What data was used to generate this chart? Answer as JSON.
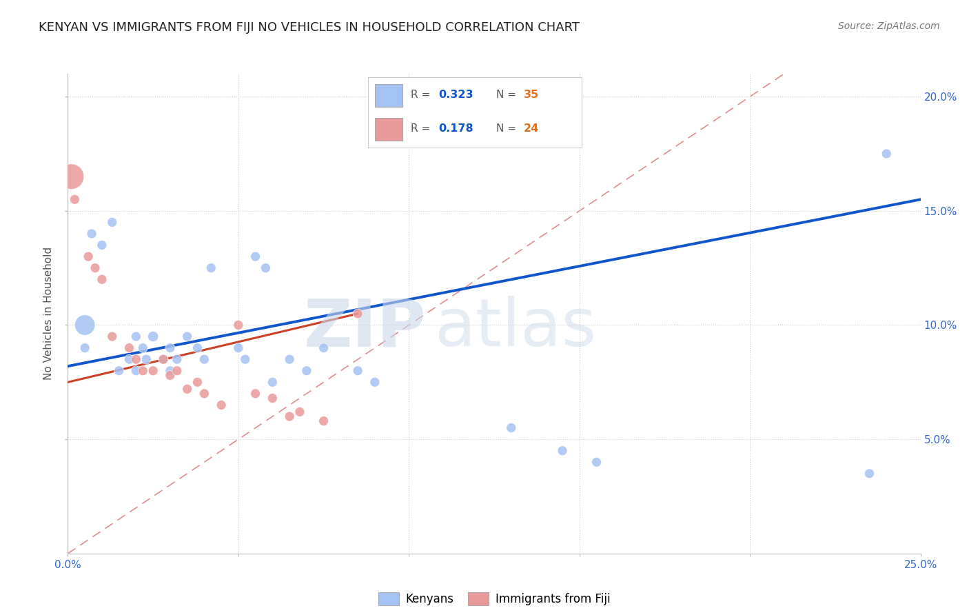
{
  "title": "KENYAN VS IMMIGRANTS FROM FIJI NO VEHICLES IN HOUSEHOLD CORRELATION CHART",
  "source": "Source: ZipAtlas.com",
  "ylabel_label": "No Vehicles in Household",
  "xlim": [
    0.0,
    0.25
  ],
  "ylim": [
    0.0,
    0.21
  ],
  "xticks": [
    0.0,
    0.05,
    0.1,
    0.15,
    0.2,
    0.25
  ],
  "yticks": [
    0.05,
    0.1,
    0.15,
    0.2
  ],
  "xticklabels": [
    "0.0%",
    "",
    "",
    "",
    "",
    "25.0%"
  ],
  "yticklabels": [
    "5.0%",
    "10.0%",
    "15.0%",
    "20.0%"
  ],
  "blue_color": "#a4c2f4",
  "pink_color": "#ea9999",
  "blue_line_color": "#1155cc",
  "pink_line_color": "#cc4125",
  "diagonal_color": "#cc4125",
  "watermark_zip": "ZIP",
  "watermark_atlas": "atlas",
  "blue_line_x": [
    0.0,
    0.25
  ],
  "blue_line_y": [
    0.082,
    0.155
  ],
  "pink_line_x": [
    0.0,
    0.085
  ],
  "pink_line_y": [
    0.075,
    0.105
  ],
  "kenyans_x": [
    0.005,
    0.005,
    0.007,
    0.01,
    0.013,
    0.015,
    0.018,
    0.02,
    0.02,
    0.022,
    0.023,
    0.025,
    0.028,
    0.03,
    0.03,
    0.032,
    0.035,
    0.038,
    0.04,
    0.042,
    0.05,
    0.052,
    0.055,
    0.058,
    0.06,
    0.065,
    0.07,
    0.075,
    0.085,
    0.09,
    0.13,
    0.145,
    0.155,
    0.235,
    0.24
  ],
  "kenyans_y": [
    0.09,
    0.1,
    0.14,
    0.135,
    0.145,
    0.08,
    0.085,
    0.08,
    0.095,
    0.09,
    0.085,
    0.095,
    0.085,
    0.09,
    0.08,
    0.085,
    0.095,
    0.09,
    0.085,
    0.125,
    0.09,
    0.085,
    0.13,
    0.125,
    0.075,
    0.085,
    0.08,
    0.09,
    0.08,
    0.075,
    0.055,
    0.045,
    0.04,
    0.035,
    0.175
  ],
  "kenyans_size": [
    100,
    450,
    100,
    100,
    100,
    100,
    100,
    100,
    100,
    100,
    100,
    120,
    100,
    100,
    100,
    100,
    100,
    100,
    100,
    100,
    100,
    100,
    100,
    100,
    100,
    100,
    100,
    100,
    100,
    100,
    100,
    100,
    100,
    100,
    100
  ],
  "fiji_x": [
    0.001,
    0.002,
    0.006,
    0.008,
    0.01,
    0.013,
    0.018,
    0.02,
    0.022,
    0.025,
    0.028,
    0.03,
    0.032,
    0.035,
    0.038,
    0.04,
    0.045,
    0.05,
    0.055,
    0.06,
    0.065,
    0.068,
    0.075,
    0.085
  ],
  "fiji_y": [
    0.165,
    0.155,
    0.13,
    0.125,
    0.12,
    0.095,
    0.09,
    0.085,
    0.08,
    0.08,
    0.085,
    0.078,
    0.08,
    0.072,
    0.075,
    0.07,
    0.065,
    0.1,
    0.07,
    0.068,
    0.06,
    0.062,
    0.058,
    0.105
  ],
  "fiji_size": [
    700,
    100,
    100,
    100,
    100,
    100,
    100,
    100,
    100,
    100,
    100,
    100,
    100,
    100,
    100,
    100,
    100,
    100,
    100,
    100,
    100,
    100,
    100,
    100
  ]
}
